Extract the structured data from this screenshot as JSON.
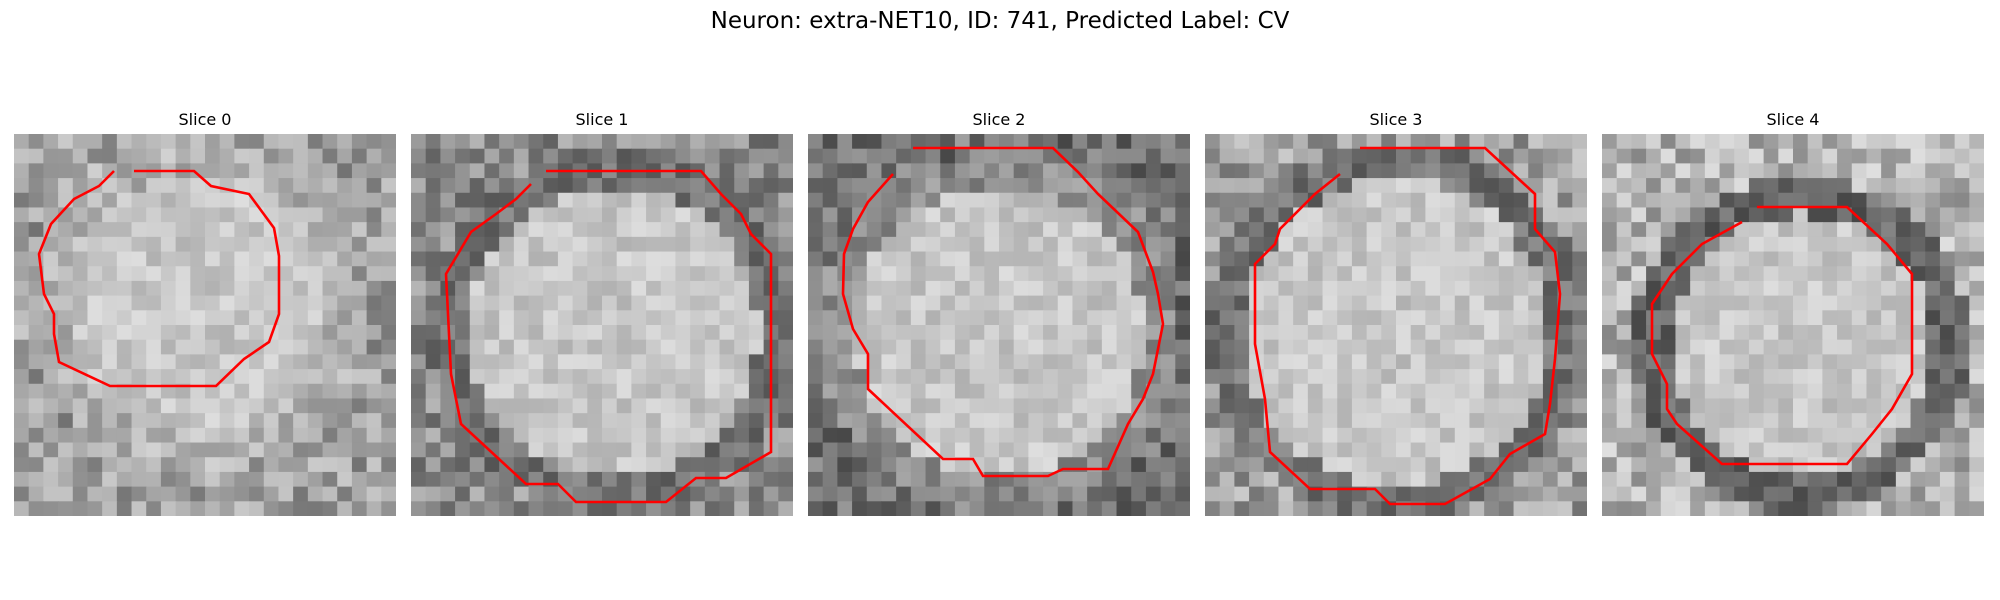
{
  "figure": {
    "title": "Neuron: extra-NET10, ID: 741, Predicted Label: CV"
  },
  "slices": [
    {
      "label": "Slice 0"
    },
    {
      "label": "Slice 1"
    },
    {
      "label": "Slice 2"
    },
    {
      "label": "Slice 3"
    },
    {
      "label": "Slice 4"
    }
  ],
  "style": {
    "contour_color": "#ff0000",
    "colormap": "grayscale"
  }
}
